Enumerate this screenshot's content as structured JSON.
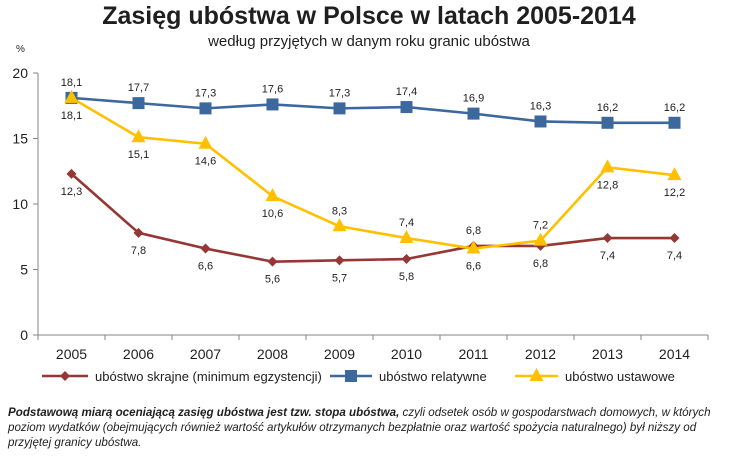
{
  "chart_data": {
    "type": "line",
    "title": "Zasięg ubóstwa w Polsce w latach 2005-2014",
    "subtitle": "według przyjętych w danym roku granic ubóstwa",
    "ylabel": "%",
    "xlabel": "",
    "ylim": [
      0,
      20
    ],
    "yticks": [
      0,
      5,
      10,
      15,
      20
    ],
    "categories": [
      "2005",
      "2006",
      "2007",
      "2008",
      "2009",
      "2010",
      "2011",
      "2012",
      "2013",
      "2014"
    ],
    "legend_position": "bottom",
    "grid": false,
    "series": [
      {
        "name": "ubóstwo skrajne (minimum egzystencji)",
        "color": "#953735",
        "marker": "diamond",
        "values": [
          12.3,
          7.8,
          6.6,
          5.6,
          5.7,
          5.8,
          6.8,
          6.8,
          7.4,
          7.4
        ],
        "labels": [
          "12,3",
          "7,8",
          "6,6",
          "5,6",
          "5,7",
          "5,8",
          "6,8",
          "6,8",
          "7,4",
          "7,4"
        ],
        "label_pos": [
          "below",
          "below",
          "below",
          "below",
          "below",
          "below",
          "above",
          "below",
          "below",
          "below"
        ]
      },
      {
        "name": "ubóstwo relatywne",
        "color": "#3C689E",
        "marker": "square",
        "values": [
          18.1,
          17.7,
          17.3,
          17.6,
          17.3,
          17.4,
          16.9,
          16.3,
          16.2,
          16.2
        ],
        "labels": [
          "18,1",
          "17,7",
          "17,3",
          "17,6",
          "17,3",
          "17,4",
          "16,9",
          "16,3",
          "16,2",
          "16,2"
        ],
        "label_pos": [
          "above",
          "above",
          "above",
          "above",
          "above",
          "above",
          "above",
          "above",
          "above",
          "above"
        ]
      },
      {
        "name": "ubóstwo ustawowe",
        "color": "#FFC000",
        "marker": "triangle",
        "values": [
          18.1,
          15.1,
          14.6,
          10.6,
          8.3,
          7.4,
          6.6,
          7.2,
          12.8,
          12.2
        ],
        "labels": [
          "18,1",
          "15,1",
          "14,6",
          "10,6",
          "8,3",
          "7,4",
          "6,6",
          "7,2",
          "12,8",
          "12,2"
        ],
        "label_pos": [
          "below",
          "below",
          "below",
          "below",
          "above",
          "above",
          "below",
          "above",
          "below",
          "below"
        ]
      }
    ]
  },
  "footnote": {
    "bold_part": "Podstawową miarą oceniającą zasięg ubóstwa jest tzw. stopa ubóstwa,",
    "rest": " czyli odsetek osób w gospodarstwach domowych, w których poziom wydatków (obejmujących również wartość artykułów otrzymanych bezpłatnie oraz wartość spożycia naturalnego) był niższy od przyjętej granicy ubóstwa."
  }
}
